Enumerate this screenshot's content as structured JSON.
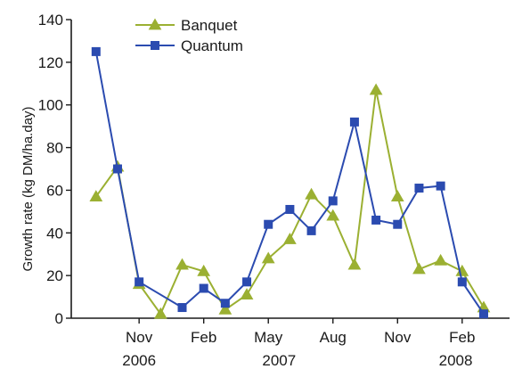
{
  "chart_data": {
    "type": "line",
    "title": "",
    "xlabel": "",
    "ylabel": "Growth rate (kg DM/ha.day)",
    "ylim": [
      0,
      140
    ],
    "yticks": [
      0,
      20,
      40,
      60,
      80,
      100,
      120,
      140
    ],
    "x_ticks": [
      {
        "month": 0,
        "label": "Nov"
      },
      {
        "month": 3,
        "label": "Feb"
      },
      {
        "month": 6,
        "label": "May"
      },
      {
        "month": 9,
        "label": "Aug"
      },
      {
        "month": 12,
        "label": "Nov"
      },
      {
        "month": 15,
        "label": "Feb"
      }
    ],
    "year_labels": [
      {
        "month": 0,
        "label": "2006"
      },
      {
        "month": 6.5,
        "label": "2007"
      },
      {
        "month": 14.7,
        "label": "2008"
      }
    ],
    "x_note": "x values are months counted from Nov 2006",
    "grid": false,
    "legend_position": "top-left",
    "series": [
      {
        "name": "Banquet",
        "color": "#9bb032",
        "marker": "triangle",
        "x": [
          -2.0,
          -1.0,
          0.0,
          1.0,
          2.0,
          3.0,
          4.0,
          5.0,
          6.0,
          7.0,
          8.0,
          9.0,
          10.0,
          11.0,
          12.0,
          13.0,
          14.0,
          15.0,
          16.0
        ],
        "y": [
          57,
          71,
          16,
          2,
          25,
          22,
          4,
          11,
          28,
          37,
          58,
          48,
          25,
          107,
          57,
          23,
          27,
          22,
          5
        ]
      },
      {
        "name": "Quantum",
        "color": "#2b4bb0",
        "marker": "square",
        "x": [
          -2.0,
          -1.0,
          0.0,
          2.0,
          3.0,
          4.0,
          5.0,
          6.0,
          7.0,
          8.0,
          9.0,
          10.0,
          11.0,
          12.0,
          13.0,
          14.0,
          15.0,
          16.0
        ],
        "y": [
          125,
          70,
          17,
          5,
          14,
          7,
          17,
          44,
          51,
          41,
          55,
          92,
          46,
          44,
          61,
          62,
          17,
          2
        ]
      }
    ]
  }
}
